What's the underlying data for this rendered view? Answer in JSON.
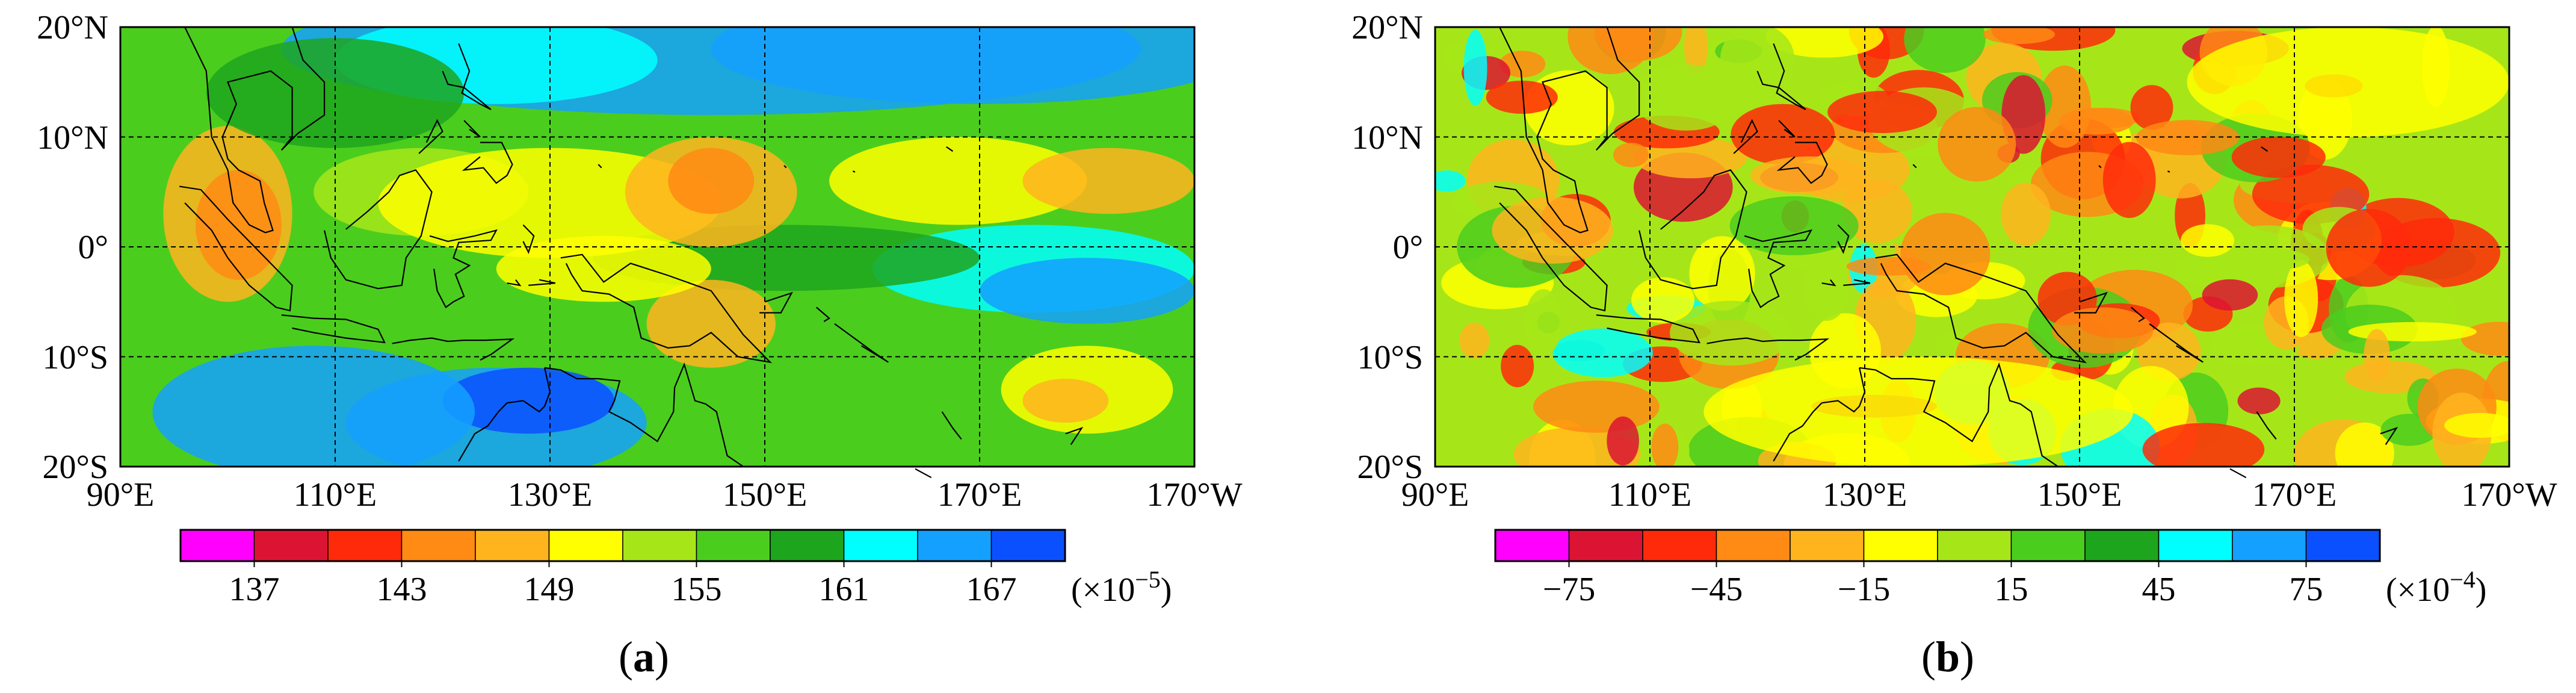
{
  "panels": [
    {
      "id": "a",
      "caption_letter": "a",
      "lat_labels": [
        "20°N",
        "10°N",
        "0°",
        "10°S",
        "20°S"
      ],
      "lon_labels": [
        "90°E",
        "110°E",
        "130°E",
        "150°E",
        "170°E",
        "170°W"
      ],
      "colorbar": {
        "colors": [
          "#ff00ff",
          "#dc1433",
          "#ff2a0a",
          "#ff8a14",
          "#ffb41e",
          "#ffff00",
          "#a6e619",
          "#4bcd1e",
          "#1ea51e",
          "#00ffff",
          "#14a0ff",
          "#0a50ff"
        ],
        "tick_labels": [
          "137",
          "143",
          "149",
          "155",
          "161",
          "167"
        ],
        "multiplier": "(×10",
        "exponent": "−5",
        "multiplier_close": ")"
      },
      "field_palette": [
        "#ff2a0a",
        "#ff8a14",
        "#ffb41e",
        "#ffff00",
        "#a6e619",
        "#4bcd1e",
        "#1ea51e",
        "#00ffff",
        "#14a0ff",
        "#0a50ff"
      ]
    },
    {
      "id": "b",
      "caption_letter": "b",
      "lat_labels": [
        "20°N",
        "10°N",
        "0°",
        "10°S",
        "20°S"
      ],
      "lon_labels": [
        "90°E",
        "110°E",
        "130°E",
        "150°E",
        "170°E",
        "170°W"
      ],
      "colorbar": {
        "colors": [
          "#ff00ff",
          "#dc1433",
          "#ff2a0a",
          "#ff8a14",
          "#ffb41e",
          "#ffff00",
          "#a6e619",
          "#4bcd1e",
          "#1ea51e",
          "#00ffff",
          "#14a0ff",
          "#0a50ff"
        ],
        "tick_labels": [
          "−75",
          "−45",
          "−15",
          "15",
          "45",
          "75"
        ],
        "multiplier": "(×10",
        "exponent": "−4",
        "multiplier_close": ")"
      },
      "field_palette": [
        "#dc1433",
        "#ff2a0a",
        "#ff8a14",
        "#ffb41e",
        "#ffff00",
        "#a6e619",
        "#4bcd1e",
        "#1ea51e",
        "#00ffff",
        "#14a0ff"
      ]
    }
  ]
}
